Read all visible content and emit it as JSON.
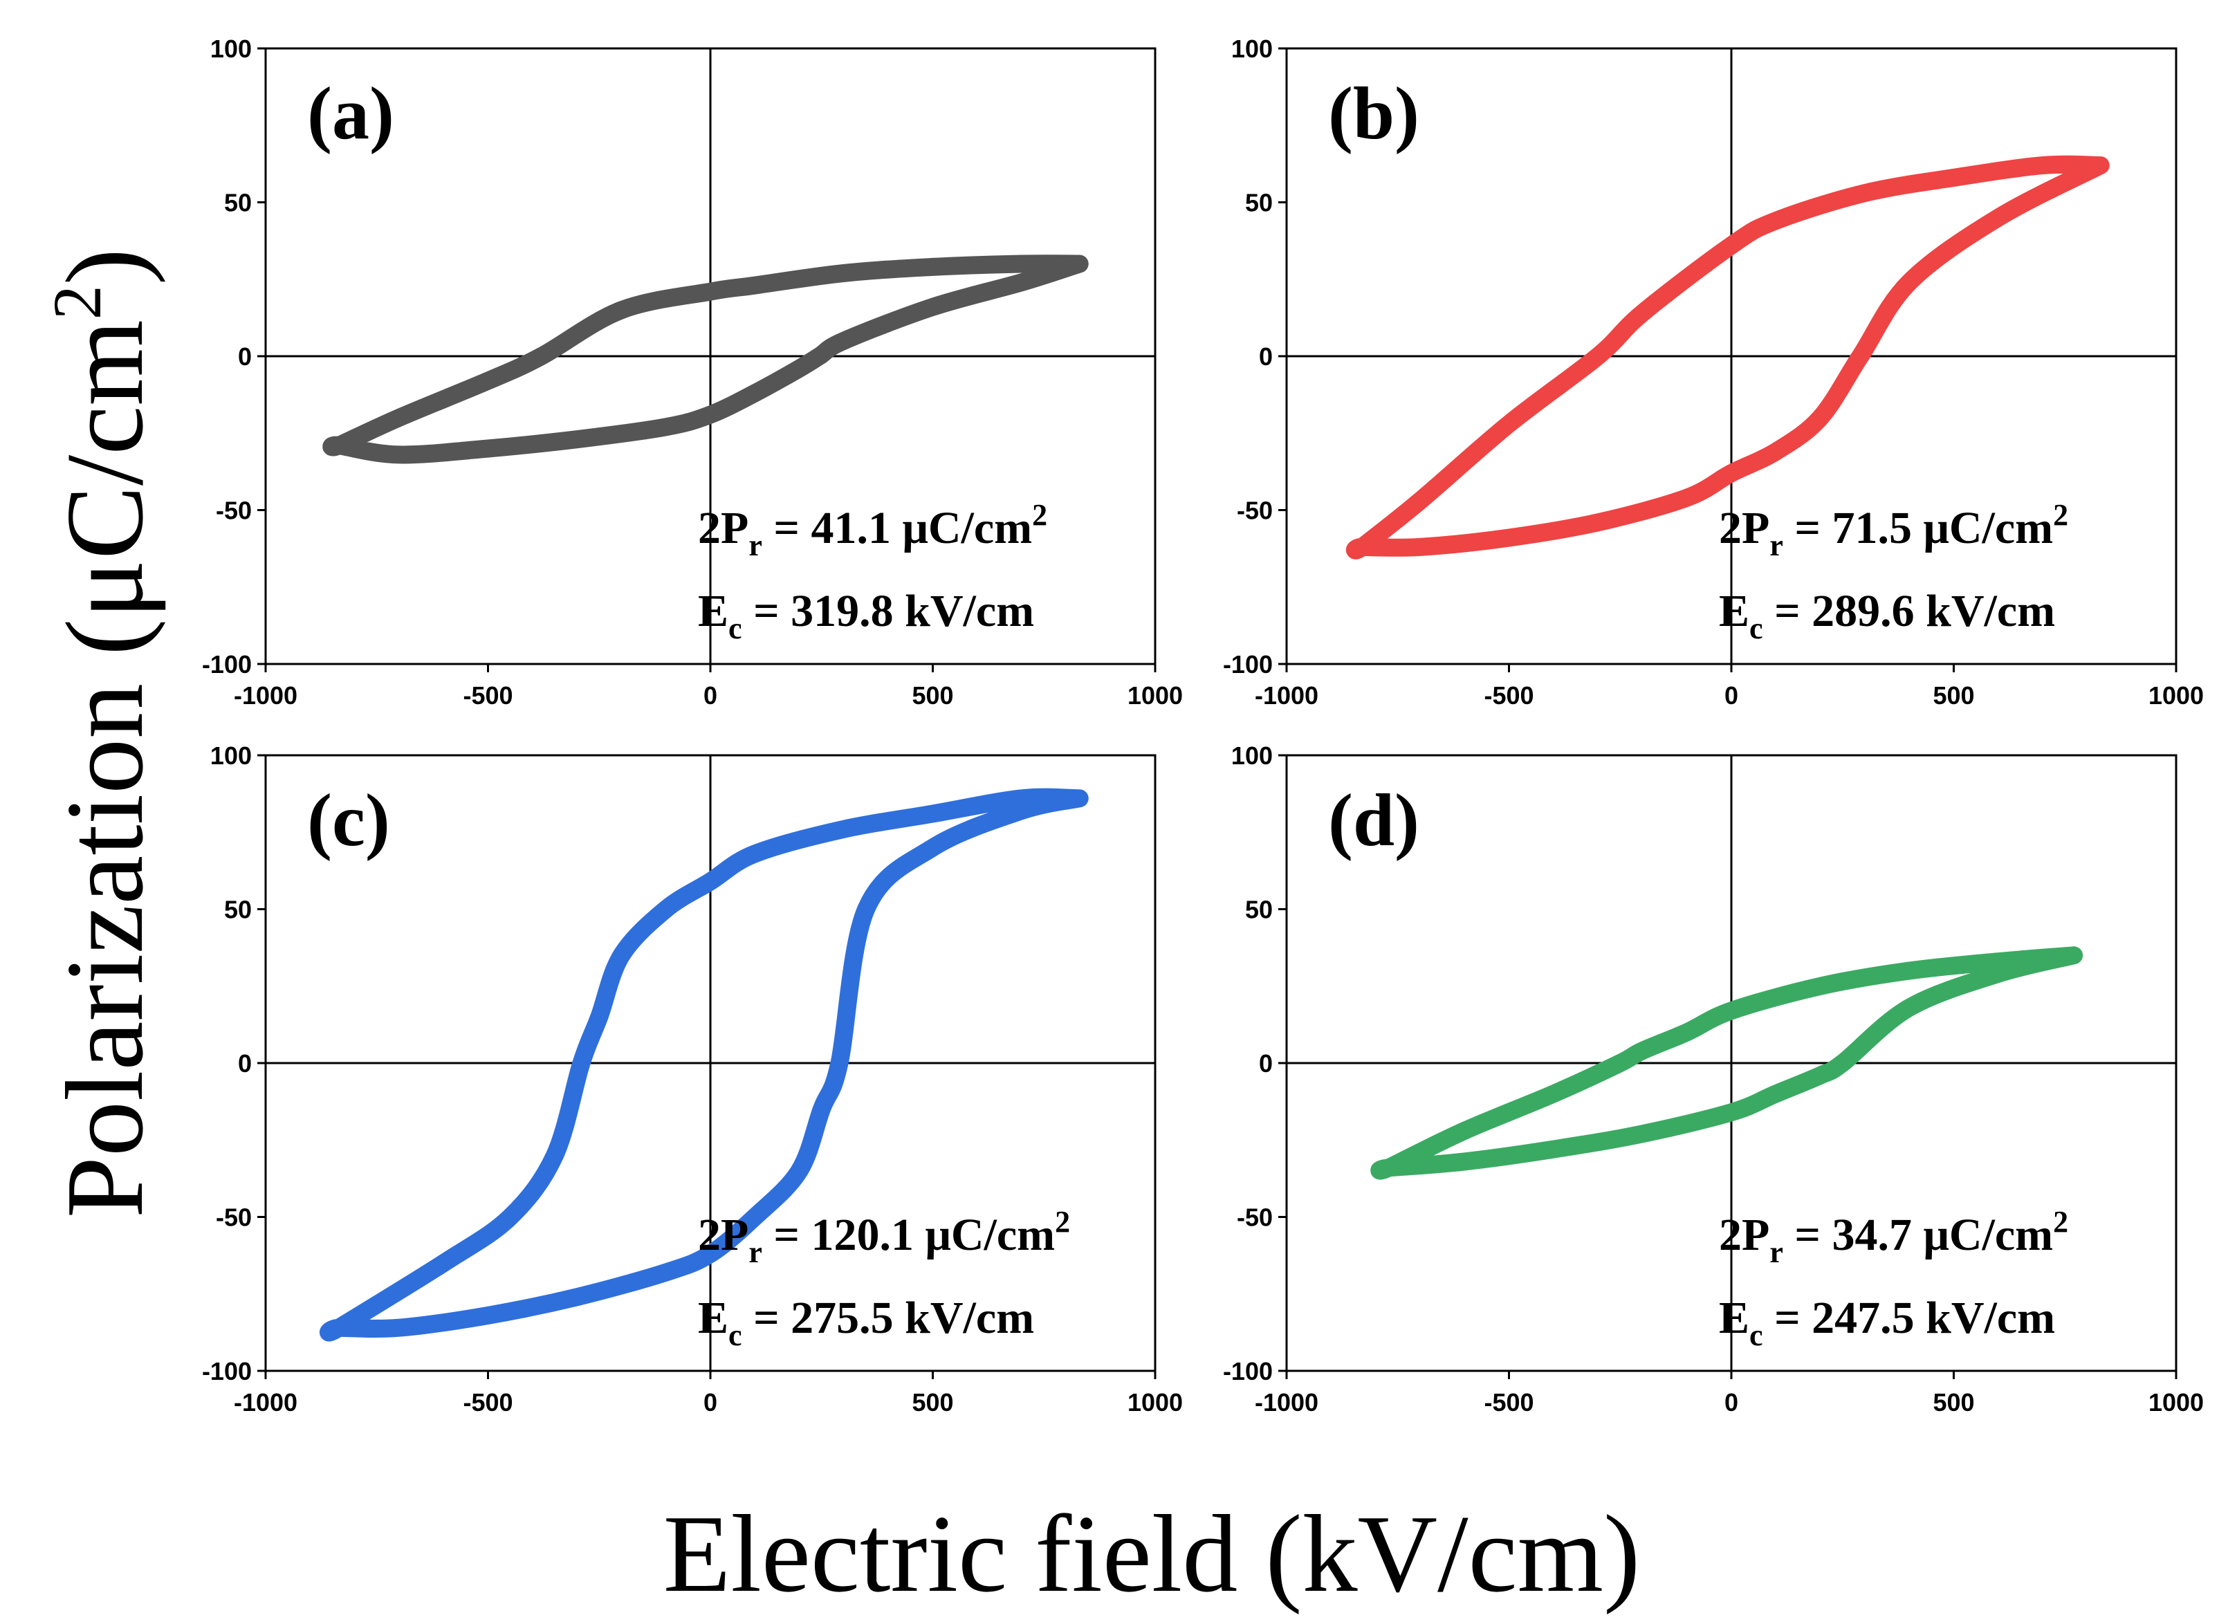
{
  "xlabel": "Electric field (kV/cm)",
  "ylabel": "Polarization (μC/cm²)",
  "ylabel_parts": {
    "main": "Polarization (μC/cm",
    "sup": "2",
    "close": ")"
  },
  "chart_data": [
    {
      "type": "line",
      "panel": "(a)",
      "color": "#555555",
      "xlim": [
        -1000,
        1000
      ],
      "ylim": [
        -100,
        100
      ],
      "xticks": [
        -1000,
        -500,
        0,
        500,
        1000
      ],
      "yticks": [
        -100,
        -50,
        0,
        50,
        100
      ],
      "xtick_labels": [
        "-1000",
        "-500",
        "0",
        "500",
        "1000"
      ],
      "ytick_labels": [
        "-100",
        "-50",
        "0",
        "50",
        "100"
      ],
      "annotation": {
        "pr_prefix": "2P",
        "pr_sub": "r",
        "pr_value": " = 41.1 μC/cm",
        "pr_sup": "2",
        "ec_prefix": "E",
        "ec_sub": "c",
        "ec_value": " = 319.8 kV/cm"
      },
      "x": [
        830,
        700,
        500,
        300,
        100,
        0,
        -200,
        -380,
        -500,
        -700,
        -835,
        -835,
        -700,
        -500,
        -300,
        -100,
        0,
        100,
        200,
        245,
        300,
        500,
        700,
        830
      ],
      "y": [
        30,
        30,
        29,
        27,
        23,
        21,
        15,
        0,
        -8,
        -20,
        -29,
        -29,
        -32,
        -30,
        -27,
        -23,
        -19,
        -12,
        -4,
        0,
        5,
        16,
        24,
        30
      ]
    },
    {
      "type": "line",
      "panel": "(b)",
      "color": "#ee4444",
      "xlim": [
        -1000,
        1000
      ],
      "ylim": [
        -100,
        100
      ],
      "xticks": [
        -1000,
        -500,
        0,
        500,
        1000
      ],
      "yticks": [
        -100,
        -50,
        0,
        50,
        100
      ],
      "xtick_labels": [
        "-1000",
        "-500",
        "0",
        "500",
        "1000"
      ],
      "ytick_labels": [
        "-100",
        "-50",
        "0",
        "50",
        "100"
      ],
      "annotation": {
        "pr_prefix": "2P",
        "pr_sub": "r",
        "pr_value": " = 71.5 μC/cm",
        "pr_sup": "2",
        "ec_prefix": "E",
        "ec_sub": "c",
        "ec_value": " = 289.6 kV/cm"
      },
      "x": [
        830,
        700,
        500,
        300,
        100,
        0,
        -200,
        -300,
        -500,
        -700,
        -830,
        -830,
        -700,
        -500,
        -300,
        -100,
        0,
        100,
        200,
        290,
        400,
        600,
        830
      ],
      "y": [
        62,
        62,
        58,
        53,
        44,
        36,
        14,
        0,
        -22,
        -47,
        -62,
        -62,
        -62,
        -59,
        -54,
        -46,
        -38,
        -31,
        -20,
        0,
        24,
        45,
        62
      ]
    },
    {
      "type": "line",
      "panel": "(c)",
      "color": "#2f6fdc",
      "xlim": [
        -1000,
        1000
      ],
      "ylim": [
        -100,
        100
      ],
      "xticks": [
        -1000,
        -500,
        0,
        500,
        1000
      ],
      "yticks": [
        -100,
        -50,
        0,
        50,
        100
      ],
      "xtick_labels": [
        "-1000",
        "-500",
        "0",
        "500",
        "1000"
      ],
      "ytick_labels": [
        "-100",
        "-50",
        "0",
        "50",
        "100"
      ],
      "annotation": {
        "pr_prefix": "2P",
        "pr_sub": "r",
        "pr_value": " = 120.1 μC/cm",
        "pr_sup": "2",
        "ec_prefix": "E",
        "ec_sub": "c",
        "ec_value": " = 275.5 kV/cm"
      },
      "x": [
        830,
        700,
        500,
        300,
        100,
        0,
        -100,
        -200,
        -250,
        -290,
        -350,
        -450,
        -600,
        -835,
        -835,
        -700,
        -500,
        -300,
        -100,
        0,
        100,
        200,
        250,
        290,
        350,
        500,
        700,
        830
      ],
      "y": [
        86,
        86,
        81,
        76,
        68,
        59,
        50,
        35,
        15,
        0,
        -30,
        -50,
        -65,
        -86,
        -86,
        -86,
        -82,
        -76,
        -68,
        -62,
        -50,
        -35,
        -15,
        0,
        50,
        70,
        82,
        86
      ]
    },
    {
      "type": "line",
      "panel": "(d)",
      "color": "#3aaa62",
      "xlim": [
        -1000,
        1000
      ],
      "ylim": [
        -100,
        100
      ],
      "xticks": [
        -1000,
        -500,
        0,
        500,
        1000
      ],
      "yticks": [
        -100,
        -50,
        0,
        50,
        100
      ],
      "xtick_labels": [
        "-1000",
        "-500",
        "0",
        "500",
        "1000"
      ],
      "ytick_labels": [
        "-100",
        "-50",
        "0",
        "50",
        "100"
      ],
      "annotation": {
        "pr_prefix": "2P",
        "pr_sub": "r",
        "pr_value": " = 34.7 μC/cm",
        "pr_sup": "2",
        "ec_prefix": "E",
        "ec_sub": "c",
        "ec_value": " = 247.5 kV/cm"
      },
      "x": [
        770,
        600,
        400,
        200,
        0,
        -100,
        -200,
        -250,
        -400,
        -600,
        -770,
        -770,
        -600,
        -400,
        -200,
        0,
        100,
        200,
        250,
        400,
        600,
        770
      ],
      "y": [
        35,
        33,
        30,
        25,
        17,
        10,
        4,
        0,
        -10,
        -22,
        -34,
        -34,
        -32,
        -28,
        -23,
        -16,
        -10,
        -4,
        0,
        18,
        29,
        35
      ]
    }
  ]
}
